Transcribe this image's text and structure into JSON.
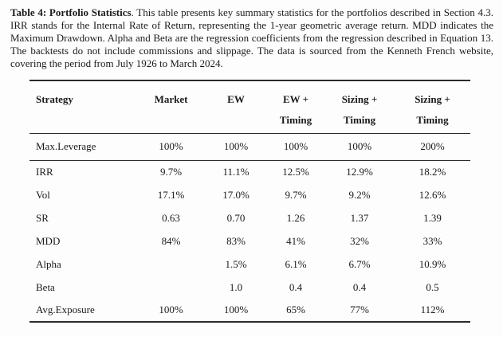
{
  "caption": {
    "label": "Table 4: Portfolio Statistics",
    "rest": ". This table presents key summary statistics for the portfolios described in Section 4.3. IRR stands for the Internal Rate of Return, representing the 1-year geometric average return. MDD indicates the Maximum Drawdown. Alpha and Beta are the regression coefficients from the regression described in Equation 13. The backtests do not include commissions and slippage. The data is sourced from the Kenneth French website, covering the period from July 1926 to March 2024."
  },
  "table": {
    "columns": [
      {
        "line1": "Strategy",
        "line2": ""
      },
      {
        "line1": "Market",
        "line2": ""
      },
      {
        "line1": "EW",
        "line2": ""
      },
      {
        "line1": "EW +",
        "line2": "Timing"
      },
      {
        "line1": "Sizing +",
        "line2": "Timing"
      },
      {
        "line1": "Sizing +",
        "line2": "Timing"
      }
    ],
    "leverage_row": {
      "label": "Max.Leverage",
      "values": [
        "100%",
        "100%",
        "100%",
        "100%",
        "200%"
      ]
    },
    "rows": [
      {
        "label": "IRR",
        "values": [
          "9.7%",
          "11.1%",
          "12.5%",
          "12.9%",
          "18.2%"
        ]
      },
      {
        "label": "Vol",
        "values": [
          "17.1%",
          "17.0%",
          "9.7%",
          "9.2%",
          "12.6%"
        ]
      },
      {
        "label": "SR",
        "values": [
          "0.63",
          "0.70",
          "1.26",
          "1.37",
          "1.39"
        ]
      },
      {
        "label": "MDD",
        "values": [
          "84%",
          "83%",
          "41%",
          "32%",
          "33%"
        ]
      },
      {
        "label": "Alpha",
        "values": [
          "",
          "1.5%",
          "6.1%",
          "6.7%",
          "10.9%"
        ]
      },
      {
        "label": "Beta",
        "values": [
          "",
          "1.0",
          "0.4",
          "0.4",
          "0.5"
        ]
      },
      {
        "label": "Avg.Exposure",
        "values": [
          "100%",
          "100%",
          "65%",
          "77%",
          "112%"
        ]
      }
    ]
  },
  "colors": {
    "text": "#1b1b1b",
    "rule": "#2b2b2b",
    "background": "#fdfdfd"
  }
}
